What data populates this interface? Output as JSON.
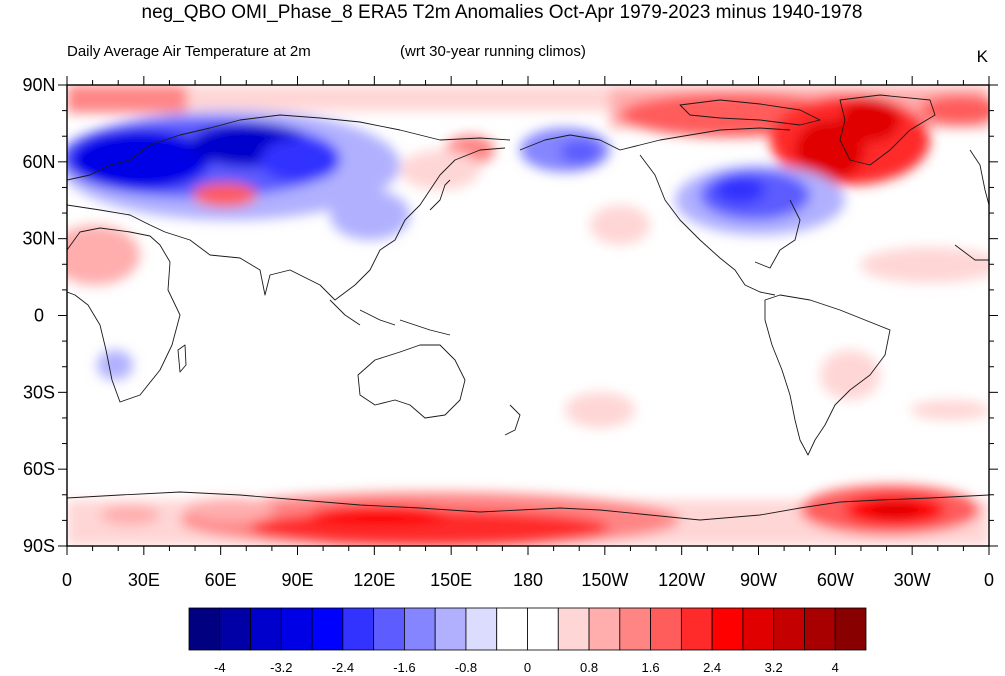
{
  "title": "neg_QBO OMI_Phase_8 ERA5 T2m Anomalies Oct-Apr 1979-2023 minus 1940-1978",
  "subtitle_left": "Daily Average Air Temperature at 2m",
  "subtitle_mid": "(wrt 30-year running climos)",
  "units": "K",
  "y_ticks": [
    "90N",
    "60N",
    "30N",
    "0",
    "30S",
    "60S",
    "90S"
  ],
  "x_ticks": [
    "0",
    "30E",
    "60E",
    "90E",
    "120E",
    "150E",
    "180",
    "150W",
    "120W",
    "90W",
    "60W",
    "30W",
    "0"
  ],
  "colorbar": {
    "colors": [
      "#000080",
      "#0000a6",
      "#0000cc",
      "#0000e6",
      "#0000ff",
      "#3333ff",
      "#5c5cff",
      "#8585ff",
      "#b0b0ff",
      "#dcdcff",
      "#ffffff",
      "#ffffff",
      "#ffd6d6",
      "#ffadad",
      "#ff8585",
      "#ff5c5c",
      "#ff2a2a",
      "#ff0000",
      "#e00000",
      "#c40000",
      "#a80000",
      "#880000"
    ],
    "tick_labels": [
      "-4",
      "-3.2",
      "-2.4",
      "-1.6",
      "-0.8",
      "0",
      "0.8",
      "1.6",
      "2.4",
      "3.2",
      "4"
    ]
  },
  "chart_data": {
    "type": "heatmap",
    "x_range": [
      0,
      360
    ],
    "y_range": [
      -90,
      90
    ],
    "contour_interval": 0.4,
    "anomaly_regions": [
      {
        "lon": 40,
        "lat": 60,
        "value": -4.0
      },
      {
        "lon": 70,
        "lat": 58,
        "value": -3.6
      },
      {
        "lon": 100,
        "lat": 62,
        "value": -3.2
      },
      {
        "lon": 140,
        "lat": 48,
        "value": -1.6
      },
      {
        "lon": 205,
        "lat": 63,
        "value": -2.0
      },
      {
        "lon": 265,
        "lat": 48,
        "value": -3.2
      },
      {
        "lon": 63,
        "lat": 47,
        "value": 2.4
      },
      {
        "lon": 157,
        "lat": 63,
        "value": 2.0
      },
      {
        "lon": 300,
        "lat": 72,
        "value": 3.6
      },
      {
        "lon": 322,
        "lat": 72,
        "value": 3.6
      },
      {
        "lon": 5,
        "lat": 82,
        "value": 2.0
      },
      {
        "lon": 140,
        "lat": -78,
        "value": 3.2
      },
      {
        "lon": 318,
        "lat": -76,
        "value": 4.0
      },
      {
        "lon": 50,
        "lat": -70,
        "value": 1.2
      },
      {
        "lon": 20,
        "lat": 32,
        "value": 1.2
      }
    ]
  }
}
